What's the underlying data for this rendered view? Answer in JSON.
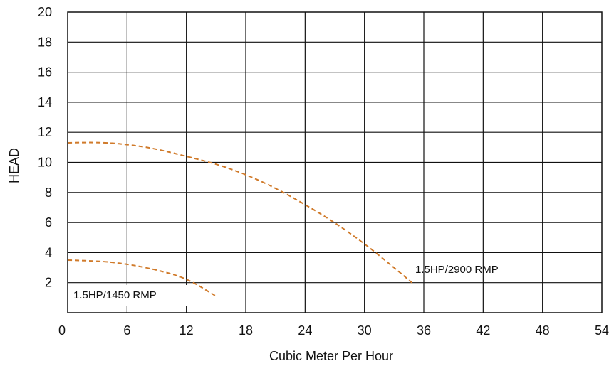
{
  "chart_data": {
    "type": "line",
    "title": "",
    "xlabel": "Cubic Meter Per Hour",
    "ylabel": "HEAD",
    "xlim": [
      0,
      54
    ],
    "ylim": [
      0,
      20
    ],
    "x_ticks": [
      "0",
      "6",
      "12",
      "18",
      "24",
      "30",
      "36",
      "42",
      "48",
      "54"
    ],
    "y_ticks": [
      "2",
      "4",
      "6",
      "8",
      "10",
      "12",
      "14",
      "16",
      "18",
      "20"
    ],
    "grid": true,
    "line_style": "dashed",
    "series": [
      {
        "name": "1.5HP/2900 RMP",
        "color": "#d07a2a",
        "points": [
          [
            0,
            11.3
          ],
          [
            3,
            11.35
          ],
          [
            6,
            11.2
          ],
          [
            9,
            10.9
          ],
          [
            12,
            10.4
          ],
          [
            15,
            9.9
          ],
          [
            18,
            9.2
          ],
          [
            21,
            8.3
          ],
          [
            24,
            7.2
          ],
          [
            27,
            6.0
          ],
          [
            30,
            4.6
          ],
          [
            33,
            3.0
          ],
          [
            34.8,
            2.0
          ]
        ]
      },
      {
        "name": "1.5HP/1450 RMP",
        "color": "#d07a2a",
        "points": [
          [
            0,
            3.5
          ],
          [
            3,
            3.45
          ],
          [
            6,
            3.25
          ],
          [
            9,
            2.85
          ],
          [
            12,
            2.3
          ],
          [
            15,
            1.1
          ]
        ]
      }
    ]
  }
}
